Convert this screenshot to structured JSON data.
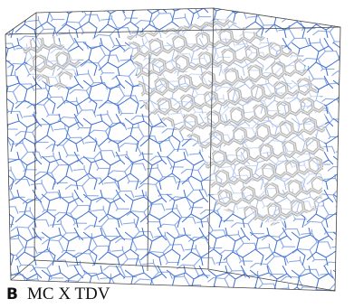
{
  "panel_label": "B",
  "caption": "MC X TDV"
}
